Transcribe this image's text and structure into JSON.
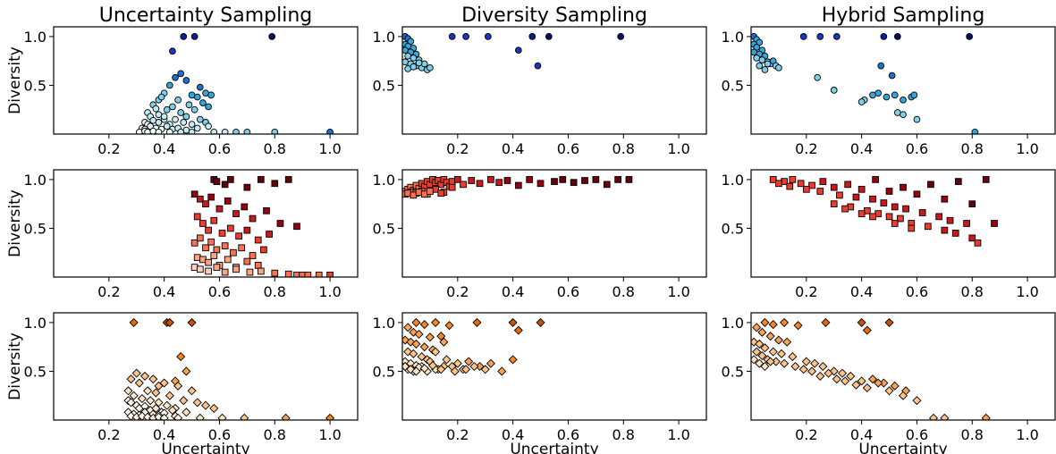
{
  "figure": {
    "column_titles": [
      "Uncertainty Sampling",
      "Diversity Sampling",
      "Hybrid Sampling"
    ],
    "xlabel": "Uncertainty",
    "ylabel": "Diversity"
  },
  "chart_data": [
    {
      "id": "r0c0",
      "type": "scatter",
      "title": "Uncertainty Sampling",
      "xlabel": "",
      "ylabel": "Diversity",
      "xlim": [
        0,
        1.1
      ],
      "ylim": [
        0,
        1.1
      ],
      "xticks": [
        0.2,
        0.4,
        0.6,
        0.8,
        1.0
      ],
      "xtick_labels": [
        "0.2",
        "0.4",
        "0.6",
        "0.8",
        "1.0"
      ],
      "yticks": [
        0.5,
        1.0
      ],
      "ytick_labels": [
        "0.5",
        "1.0"
      ],
      "marker": "circle",
      "palette": "blues",
      "x": [
        0.43,
        0.47,
        0.51,
        0.79,
        0.38,
        0.4,
        0.42,
        0.44,
        0.46,
        0.48,
        0.5,
        0.53,
        0.55,
        0.57,
        0.36,
        0.39,
        0.41,
        0.45,
        0.49,
        0.52,
        0.54,
        0.56,
        0.34,
        0.35,
        0.37,
        0.38,
        0.4,
        0.43,
        0.46,
        0.48,
        0.51,
        0.33,
        0.34,
        0.36,
        0.38,
        0.4,
        0.42,
        0.44,
        0.47,
        0.5,
        0.53,
        0.55,
        0.32,
        0.33,
        0.35,
        0.37,
        0.39,
        0.41,
        0.43,
        0.45,
        0.48,
        0.52,
        0.56,
        0.31,
        0.33,
        0.34,
        0.36,
        0.38,
        0.42,
        0.46,
        0.5,
        0.58,
        0.62,
        0.66,
        0.7,
        0.8,
        1.0
      ],
      "y": [
        0.85,
        1.0,
        1.0,
        1.0,
        0.35,
        0.42,
        0.5,
        0.58,
        0.62,
        0.55,
        0.4,
        0.48,
        0.42,
        0.4,
        0.3,
        0.38,
        0.25,
        0.35,
        0.3,
        0.38,
        0.32,
        0.28,
        0.22,
        0.18,
        0.26,
        0.2,
        0.15,
        0.28,
        0.22,
        0.18,
        0.25,
        0.12,
        0.1,
        0.14,
        0.12,
        0.18,
        0.1,
        0.15,
        0.12,
        0.1,
        0.15,
        0.12,
        0.06,
        0.05,
        0.08,
        0.06,
        0.05,
        0.08,
        0.05,
        0.06,
        0.04,
        0.06,
        0.08,
        0.02,
        0.03,
        0.02,
        0.03,
        0.02,
        0.02,
        0.02,
        0.02,
        0.02,
        0.02,
        0.02,
        0.02,
        0.02,
        0.02
      ]
    },
    {
      "id": "r0c1",
      "type": "scatter",
      "title": "Diversity Sampling",
      "xlabel": "",
      "ylabel": "",
      "xlim": [
        0,
        1.1
      ],
      "ylim": [
        0,
        1.1
      ],
      "xticks": [
        0.2,
        0.4,
        0.6,
        0.8,
        1.0
      ],
      "xtick_labels": [
        "0.2",
        "0.4",
        "0.6",
        "0.8",
        "1.0"
      ],
      "yticks": [
        0.5,
        1.0
      ],
      "ytick_labels": [
        "0.5",
        "1.0"
      ],
      "marker": "circle",
      "palette": "blues",
      "x": [
        0.18,
        0.23,
        0.31,
        0.47,
        0.53,
        0.79,
        0.42,
        0.49,
        0.01,
        0.02,
        0.03,
        0.01,
        0.02,
        0.04,
        0.01,
        0.03,
        0.05,
        0.02,
        0.04,
        0.06,
        0.01,
        0.03,
        0.05,
        0.07,
        0.02,
        0.04,
        0.08,
        0.09,
        0.06,
        0.1
      ],
      "y": [
        1.0,
        1.0,
        1.0,
        1.0,
        1.0,
        1.0,
        0.86,
        0.7,
        1.0,
        0.98,
        0.95,
        0.92,
        0.9,
        0.88,
        0.86,
        0.84,
        0.82,
        0.8,
        0.78,
        0.76,
        0.74,
        0.72,
        0.7,
        0.68,
        0.67,
        0.69,
        0.72,
        0.66,
        0.73,
        0.68
      ]
    },
    {
      "id": "r0c2",
      "type": "scatter",
      "title": "Hybrid Sampling",
      "xlabel": "",
      "ylabel": "",
      "xlim": [
        0,
        1.1
      ],
      "ylim": [
        0,
        1.1
      ],
      "xticks": [
        0.2,
        0.4,
        0.6,
        0.8,
        1.0
      ],
      "xtick_labels": [
        "0.2",
        "0.4",
        "0.6",
        "0.8",
        "1.0"
      ],
      "yticks": [
        0.5,
        1.0
      ],
      "ytick_labels": [
        "0.5",
        "1.0"
      ],
      "marker": "circle",
      "palette": "blues",
      "x": [
        0.19,
        0.25,
        0.31,
        0.48,
        0.53,
        0.79,
        0.47,
        0.51,
        0.24,
        0.3,
        0.41,
        0.44,
        0.46,
        0.49,
        0.52,
        0.55,
        0.58,
        0.59,
        0.4,
        0.53,
        0.55,
        0.6,
        0.81,
        0.01,
        0.02,
        0.03,
        0.01,
        0.02,
        0.04,
        0.01,
        0.03,
        0.05,
        0.02,
        0.04,
        0.06,
        0.07,
        0.03,
        0.08,
        0.09,
        0.1,
        0.05,
        0.06
      ],
      "y": [
        1.0,
        1.0,
        1.0,
        1.0,
        1.0,
        1.0,
        0.7,
        0.6,
        0.58,
        0.45,
        0.35,
        0.4,
        0.42,
        0.38,
        0.4,
        0.35,
        0.38,
        0.4,
        0.33,
        0.22,
        0.2,
        0.15,
        0.02,
        1.0,
        0.97,
        0.94,
        0.92,
        0.89,
        0.86,
        0.84,
        0.82,
        0.8,
        0.78,
        0.76,
        0.74,
        0.72,
        0.7,
        0.75,
        0.7,
        0.68,
        0.66,
        0.72
      ]
    },
    {
      "id": "r1c0",
      "type": "scatter",
      "title": "",
      "xlabel": "",
      "ylabel": "Diversity",
      "xlim": [
        0,
        1.1
      ],
      "ylim": [
        0,
        1.1
      ],
      "xticks": [
        0.2,
        0.4,
        0.6,
        0.8,
        1.0
      ],
      "xtick_labels": [
        "0.2",
        "0.4",
        "0.6",
        "0.8",
        "1.0"
      ],
      "yticks": [
        0.5,
        1.0
      ],
      "ytick_labels": [
        "0.5",
        "1.0"
      ],
      "marker": "square",
      "palette": "reds",
      "x": [
        0.58,
        0.59,
        0.62,
        0.64,
        0.7,
        0.75,
        0.8,
        0.85,
        0.51,
        0.53,
        0.55,
        0.57,
        0.6,
        0.63,
        0.66,
        0.69,
        0.72,
        0.77,
        0.82,
        0.88,
        0.52,
        0.54,
        0.56,
        0.58,
        0.61,
        0.64,
        0.67,
        0.7,
        0.74,
        0.78,
        0.51,
        0.53,
        0.55,
        0.57,
        0.59,
        0.62,
        0.65,
        0.68,
        0.72,
        0.76,
        0.52,
        0.54,
        0.56,
        0.58,
        0.6,
        0.63,
        0.66,
        0.7,
        0.74,
        0.51,
        0.53,
        0.56,
        0.59,
        0.62,
        0.66,
        0.71,
        0.75,
        0.8,
        0.85,
        0.88,
        0.9,
        0.92,
        0.96,
        1.0
      ],
      "y": [
        1.0,
        0.98,
        0.95,
        1.0,
        0.92,
        1.0,
        0.96,
        1.0,
        0.85,
        0.8,
        0.75,
        0.82,
        0.7,
        0.78,
        0.65,
        0.72,
        0.6,
        0.68,
        0.55,
        0.52,
        0.62,
        0.55,
        0.48,
        0.58,
        0.45,
        0.5,
        0.42,
        0.48,
        0.38,
        0.44,
        0.35,
        0.4,
        0.3,
        0.36,
        0.28,
        0.32,
        0.25,
        0.3,
        0.22,
        0.28,
        0.2,
        0.18,
        0.15,
        0.22,
        0.12,
        0.18,
        0.1,
        0.16,
        0.12,
        0.1,
        0.08,
        0.06,
        0.1,
        0.05,
        0.08,
        0.05,
        0.06,
        0.04,
        0.03,
        0.02,
        0.02,
        0.02,
        0.02,
        0.02
      ]
    },
    {
      "id": "r1c1",
      "type": "scatter",
      "title": "",
      "xlabel": "",
      "ylabel": "",
      "xlim": [
        0,
        1.1
      ],
      "ylim": [
        0,
        1.1
      ],
      "xticks": [
        0.2,
        0.4,
        0.6,
        0.8,
        1.0
      ],
      "xtick_labels": [
        "0.2",
        "0.4",
        "0.6",
        "0.8",
        "1.0"
      ],
      "yticks": [
        0.5,
        1.0
      ],
      "ytick_labels": [
        "0.5",
        "1.0"
      ],
      "marker": "square",
      "palette": "reds",
      "x": [
        0.01,
        0.02,
        0.03,
        0.04,
        0.05,
        0.06,
        0.07,
        0.08,
        0.09,
        0.1,
        0.11,
        0.12,
        0.13,
        0.14,
        0.15,
        0.16,
        0.17,
        0.18,
        0.2,
        0.22,
        0.25,
        0.28,
        0.32,
        0.35,
        0.38,
        0.42,
        0.46,
        0.5,
        0.55,
        0.58,
        0.62,
        0.66,
        0.7,
        0.74,
        0.78,
        0.82,
        0.01,
        0.03,
        0.05,
        0.07,
        0.09,
        0.12,
        0.15,
        0.18,
        0.02,
        0.04,
        0.06,
        0.08,
        0.1,
        0.14
      ],
      "y": [
        0.88,
        0.9,
        0.92,
        0.89,
        0.94,
        0.91,
        0.96,
        0.93,
        0.98,
        0.95,
        1.0,
        0.97,
        0.99,
        0.95,
        1.0,
        0.97,
        0.93,
        0.98,
        1.0,
        0.95,
        0.99,
        0.96,
        1.0,
        0.97,
        0.99,
        0.94,
        1.0,
        0.96,
        0.98,
        1.0,
        0.97,
        0.99,
        1.0,
        0.95,
        1.0,
        1.0,
        0.85,
        0.87,
        0.86,
        0.88,
        0.85,
        0.9,
        0.87,
        0.92,
        0.86,
        0.84,
        0.87,
        0.85,
        0.88,
        0.86
      ]
    },
    {
      "id": "r1c2",
      "type": "scatter",
      "title": "",
      "xlabel": "",
      "ylabel": "",
      "xlim": [
        0,
        1.1
      ],
      "ylim": [
        0,
        1.1
      ],
      "xticks": [
        0.2,
        0.4,
        0.6,
        0.8,
        1.0
      ],
      "xtick_labels": [
        "0.2",
        "0.4",
        "0.6",
        "0.8",
        "1.0"
      ],
      "yticks": [
        0.5,
        1.0
      ],
      "ytick_labels": [
        "0.5",
        "1.0"
      ],
      "marker": "square",
      "palette": "reds",
      "x": [
        0.08,
        0.12,
        0.15,
        0.18,
        0.22,
        0.26,
        0.3,
        0.35,
        0.4,
        0.45,
        0.5,
        0.55,
        0.6,
        0.65,
        0.7,
        0.75,
        0.8,
        0.85,
        0.1,
        0.14,
        0.2,
        0.25,
        0.32,
        0.38,
        0.44,
        0.48,
        0.52,
        0.56,
        0.62,
        0.68,
        0.72,
        0.78,
        0.88,
        0.3,
        0.36,
        0.42,
        0.46,
        0.5,
        0.54,
        0.58,
        0.64,
        0.7,
        0.74,
        0.8,
        0.82,
        0.34,
        0.4,
        0.44,
        0.52,
        0.58
      ],
      "y": [
        1.0,
        0.98,
        1.0,
        0.96,
        0.94,
        0.98,
        0.92,
        0.95,
        0.9,
        1.0,
        0.88,
        0.92,
        0.85,
        0.95,
        0.8,
        0.98,
        0.75,
        1.0,
        0.96,
        0.93,
        0.9,
        0.88,
        0.84,
        0.82,
        0.8,
        0.76,
        0.72,
        0.7,
        0.66,
        0.62,
        0.58,
        0.55,
        0.55,
        0.75,
        0.72,
        0.68,
        0.65,
        0.62,
        0.6,
        0.55,
        0.52,
        0.48,
        0.45,
        0.4,
        0.35,
        0.7,
        0.65,
        0.62,
        0.55,
        0.5
      ]
    },
    {
      "id": "r2c0",
      "type": "scatter",
      "title": "",
      "xlabel": "Uncertainty",
      "ylabel": "Diversity",
      "xlim": [
        0,
        1.1
      ],
      "ylim": [
        0,
        1.1
      ],
      "xticks": [
        0.2,
        0.4,
        0.6,
        0.8,
        1.0
      ],
      "xtick_labels": [
        "0.2",
        "0.4",
        "0.6",
        "0.8",
        "1.0"
      ],
      "yticks": [
        0.5,
        1.0
      ],
      "ytick_labels": [
        "0.5",
        "1.0"
      ],
      "marker": "diamond",
      "palette": "oranges",
      "x": [
        0.29,
        0.41,
        0.42,
        0.5,
        0.46,
        0.48,
        0.44,
        0.38,
        0.3,
        0.33,
        0.36,
        0.4,
        0.45,
        0.5,
        0.55,
        0.28,
        0.31,
        0.34,
        0.37,
        0.42,
        0.47,
        0.52,
        0.58,
        0.27,
        0.29,
        0.32,
        0.35,
        0.38,
        0.41,
        0.44,
        0.27,
        0.28,
        0.3,
        0.31,
        0.33,
        0.35,
        0.37,
        0.39,
        0.43,
        0.48,
        0.27,
        0.29,
        0.31,
        0.33,
        0.36,
        0.38,
        0.4,
        0.44,
        0.28,
        0.3,
        0.32,
        0.34,
        0.36,
        0.38,
        0.4,
        0.45,
        0.53,
        0.61,
        0.69,
        0.84,
        1.0
      ],
      "y": [
        1.0,
        1.0,
        1.0,
        1.0,
        0.65,
        0.5,
        0.4,
        0.35,
        0.48,
        0.45,
        0.42,
        0.38,
        0.35,
        0.3,
        0.15,
        0.42,
        0.38,
        0.3,
        0.28,
        0.25,
        0.2,
        0.18,
        0.12,
        0.3,
        0.25,
        0.22,
        0.2,
        0.18,
        0.15,
        0.12,
        0.2,
        0.18,
        0.15,
        0.12,
        0.14,
        0.1,
        0.12,
        0.08,
        0.1,
        0.08,
        0.08,
        0.06,
        0.05,
        0.08,
        0.06,
        0.05,
        0.07,
        0.04,
        0.04,
        0.03,
        0.04,
        0.03,
        0.02,
        0.03,
        0.02,
        0.02,
        0.02,
        0.02,
        0.02,
        0.02,
        0.02
      ]
    },
    {
      "id": "r2c1",
      "type": "scatter",
      "title": "",
      "xlabel": "Uncertainty",
      "ylabel": "",
      "xlim": [
        0,
        1.1
      ],
      "ylim": [
        0,
        1.1
      ],
      "xticks": [
        0.2,
        0.4,
        0.6,
        0.8,
        1.0
      ],
      "xtick_labels": [
        "0.2",
        "0.4",
        "0.6",
        "0.8",
        "1.0"
      ],
      "yticks": [
        0.5,
        1.0
      ],
      "ytick_labels": [
        "0.5",
        "1.0"
      ],
      "marker": "diamond",
      "palette": "oranges",
      "x": [
        0.05,
        0.08,
        0.12,
        0.17,
        0.27,
        0.4,
        0.42,
        0.5,
        0.02,
        0.04,
        0.06,
        0.1,
        0.14,
        0.01,
        0.03,
        0.05,
        0.08,
        0.11,
        0.15,
        0.02,
        0.04,
        0.07,
        0.09,
        0.12,
        0.16,
        0.2,
        0.24,
        0.28,
        0.32,
        0.4,
        0.01,
        0.03,
        0.05,
        0.07,
        0.1,
        0.13,
        0.18,
        0.22,
        0.26,
        0.36,
        0.02,
        0.04,
        0.06,
        0.09,
        0.12,
        0.15,
        0.19,
        0.23,
        0.3,
        0.01,
        0.03,
        0.05,
        0.08,
        0.11,
        0.14
      ],
      "y": [
        1.0,
        0.98,
        1.0,
        0.97,
        1.0,
        1.0,
        0.92,
        1.0,
        0.95,
        0.9,
        0.88,
        0.85,
        0.86,
        0.82,
        0.8,
        0.78,
        0.75,
        0.72,
        0.8,
        0.7,
        0.68,
        0.65,
        0.62,
        0.7,
        0.62,
        0.58,
        0.6,
        0.55,
        0.58,
        0.62,
        0.6,
        0.58,
        0.56,
        0.55,
        0.6,
        0.52,
        0.55,
        0.52,
        0.55,
        0.5,
        0.52,
        0.5,
        0.54,
        0.5,
        0.52,
        0.55,
        0.5,
        0.52,
        0.52,
        0.55,
        0.52,
        0.5,
        0.53,
        0.56,
        0.52
      ]
    },
    {
      "id": "r2c2",
      "type": "scatter",
      "title": "",
      "xlabel": "Uncertainty",
      "ylabel": "",
      "xlim": [
        0,
        1.1
      ],
      "ylim": [
        0,
        1.1
      ],
      "xticks": [
        0.2,
        0.4,
        0.6,
        0.8,
        1.0
      ],
      "xtick_labels": [
        "0.2",
        "0.4",
        "0.6",
        "0.8",
        "1.0"
      ],
      "yticks": [
        0.5,
        1.0
      ],
      "ytick_labels": [
        "0.5",
        "1.0"
      ],
      "marker": "diamond",
      "palette": "oranges",
      "x": [
        0.05,
        0.08,
        0.12,
        0.17,
        0.27,
        0.4,
        0.42,
        0.5,
        0.02,
        0.04,
        0.07,
        0.1,
        0.13,
        0.01,
        0.03,
        0.05,
        0.08,
        0.11,
        0.15,
        0.2,
        0.23,
        0.26,
        0.3,
        0.33,
        0.36,
        0.4,
        0.44,
        0.48,
        0.52,
        0.56,
        0.02,
        0.04,
        0.06,
        0.09,
        0.12,
        0.16,
        0.19,
        0.22,
        0.25,
        0.28,
        0.31,
        0.34,
        0.38,
        0.42,
        0.46,
        0.5,
        0.55,
        0.6,
        0.66,
        0.7,
        0.85,
        0.01,
        0.03,
        0.05,
        0.07
      ],
      "y": [
        1.0,
        0.98,
        1.0,
        0.97,
        1.0,
        1.0,
        0.92,
        1.0,
        0.95,
        0.9,
        0.86,
        0.82,
        0.8,
        0.8,
        0.78,
        0.74,
        0.7,
        0.68,
        0.65,
        0.6,
        0.58,
        0.55,
        0.5,
        0.48,
        0.45,
        0.4,
        0.42,
        0.38,
        0.35,
        0.3,
        0.7,
        0.66,
        0.62,
        0.6,
        0.58,
        0.55,
        0.52,
        0.5,
        0.45,
        0.48,
        0.42,
        0.4,
        0.36,
        0.33,
        0.38,
        0.3,
        0.25,
        0.2,
        0.02,
        0.02,
        0.02,
        0.62,
        0.58,
        0.55,
        0.6
      ]
    }
  ]
}
